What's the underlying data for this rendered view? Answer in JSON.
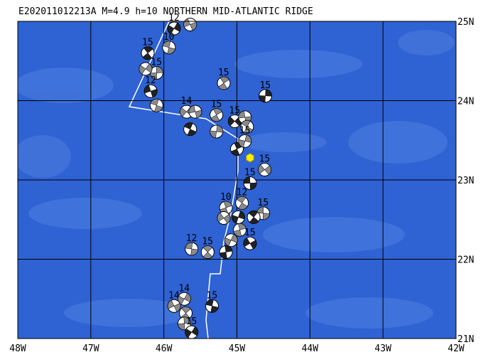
{
  "map": {
    "title": "E202011012213A M=4.9 h=10 NORTHERN MID-ATLANTIC RIDGE",
    "lon_ticks": [
      {
        "value": -48,
        "label": "48W"
      },
      {
        "value": -47,
        "label": "47W"
      },
      {
        "value": -46,
        "label": "46W"
      },
      {
        "value": -45,
        "label": "45W"
      },
      {
        "value": -44,
        "label": "44W"
      },
      {
        "value": -43,
        "label": "43W"
      },
      {
        "value": -42,
        "label": "42W"
      }
    ],
    "lat_ticks": [
      {
        "value": 21,
        "label": "21N"
      },
      {
        "value": 22,
        "label": "22N"
      },
      {
        "value": 23,
        "label": "23N"
      },
      {
        "value": 24,
        "label": "24N"
      },
      {
        "value": 25,
        "label": "25N"
      }
    ],
    "lon_range": [
      -48,
      -42
    ],
    "lat_range": [
      21,
      25
    ],
    "epicenter": {
      "lon": -44.82,
      "lat": 23.28
    },
    "events": [
      {
        "lon": -45.86,
        "lat": 24.91,
        "label": "12"
      },
      {
        "lon": -45.64,
        "lat": 24.96
      },
      {
        "lon": -45.93,
        "lat": 24.67,
        "label": "10"
      },
      {
        "lon": -46.22,
        "lat": 24.6,
        "label": "15"
      },
      {
        "lon": -46.1,
        "lat": 24.35,
        "label": "15"
      },
      {
        "lon": -46.25,
        "lat": 24.4
      },
      {
        "lon": -46.18,
        "lat": 24.12,
        "label": "12"
      },
      {
        "lon": -46.1,
        "lat": 23.94
      },
      {
        "lon": -45.18,
        "lat": 24.22,
        "label": "15"
      },
      {
        "lon": -44.61,
        "lat": 24.06,
        "label": "15"
      },
      {
        "lon": -45.69,
        "lat": 23.86,
        "label": "14"
      },
      {
        "lon": -45.57,
        "lat": 23.86
      },
      {
        "lon": -45.64,
        "lat": 23.64
      },
      {
        "lon": -45.28,
        "lat": 23.82,
        "label": "15"
      },
      {
        "lon": -45.28,
        "lat": 23.61
      },
      {
        "lon": -45.03,
        "lat": 23.74,
        "label": "15"
      },
      {
        "lon": -44.89,
        "lat": 23.79
      },
      {
        "lon": -44.86,
        "lat": 23.67
      },
      {
        "lon": -45.0,
        "lat": 23.39
      },
      {
        "lon": -44.89,
        "lat": 23.49,
        "label": "15"
      },
      {
        "lon": -44.62,
        "lat": 23.13,
        "label": "15"
      },
      {
        "lon": -44.82,
        "lat": 22.96,
        "label": "15"
      },
      {
        "lon": -44.93,
        "lat": 22.71,
        "label": "12"
      },
      {
        "lon": -45.15,
        "lat": 22.65,
        "label": "10"
      },
      {
        "lon": -44.98,
        "lat": 22.53
      },
      {
        "lon": -45.18,
        "lat": 22.52
      },
      {
        "lon": -44.64,
        "lat": 22.58,
        "label": "15"
      },
      {
        "lon": -44.77,
        "lat": 22.53
      },
      {
        "lon": -44.96,
        "lat": 22.37
      },
      {
        "lon": -45.08,
        "lat": 22.24
      },
      {
        "lon": -44.82,
        "lat": 22.2,
        "label": "15"
      },
      {
        "lon": -45.62,
        "lat": 22.13,
        "label": "12"
      },
      {
        "lon": -45.4,
        "lat": 22.09,
        "label": "15"
      },
      {
        "lon": -45.15,
        "lat": 22.09
      },
      {
        "lon": -45.72,
        "lat": 21.5,
        "label": "14"
      },
      {
        "lon": -45.86,
        "lat": 21.41,
        "label": "14"
      },
      {
        "lon": -45.34,
        "lat": 21.41,
        "label": "15"
      },
      {
        "lon": -45.7,
        "lat": 21.32
      },
      {
        "lon": -45.72,
        "lat": 21.19
      },
      {
        "lon": -45.62,
        "lat": 21.08,
        "label": "15"
      }
    ]
  }
}
